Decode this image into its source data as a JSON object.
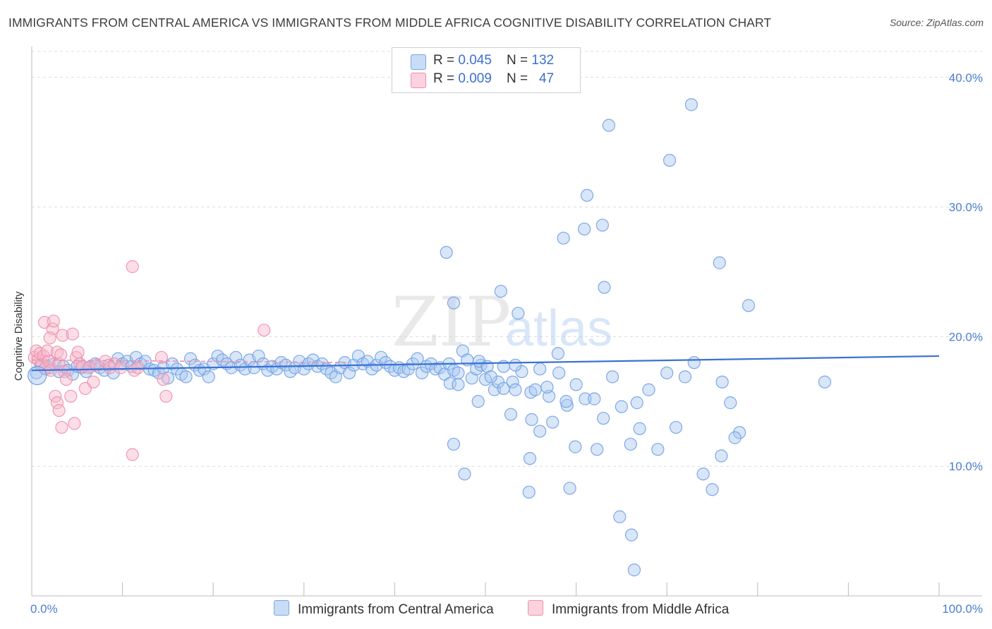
{
  "title": "IMMIGRANTS FROM CENTRAL AMERICA VS IMMIGRANTS FROM MIDDLE AFRICA COGNITIVE DISABILITY CORRELATION CHART",
  "source": "Source: ZipAtlas.com",
  "watermark": {
    "zip": "ZIP",
    "atlas": "atlas"
  },
  "legend": {
    "rows": [
      {
        "r_label": "R = ",
        "r_value": "0.045",
        "n_label": "N = ",
        "n_value": "132",
        "color": "#a9c8f0"
      },
      {
        "r_label": "R = ",
        "r_value": "0.009",
        "n_label": "N = ",
        "n_value": "47",
        "color": "#f6b6c9"
      }
    ]
  },
  "chart_data": {
    "type": "scatter",
    "title": "IMMIGRANTS FROM CENTRAL AMERICA VS IMMIGRANTS FROM MIDDLE AFRICA COGNITIVE DISABILITY CORRELATION CHART",
    "xlabel": "",
    "ylabel": "Cognitive Disability",
    "xlim": [
      0,
      100
    ],
    "ylim": [
      0,
      42
    ],
    "x_tick_labels": [
      "0.0%",
      "100.0%"
    ],
    "y_ticks": [
      10,
      20,
      30,
      40
    ],
    "y_tick_labels": [
      "10.0%",
      "20.0%",
      "30.0%",
      "40.0%"
    ],
    "grid": true,
    "series": [
      {
        "name": "Immigrants from Central America",
        "color": "#6fa0e6",
        "fill": "#a9c8f0",
        "trend": {
          "x": [
            0,
            100
          ],
          "y": [
            17.4,
            18.5
          ]
        },
        "points": [
          [
            0.5,
            17.2
          ],
          [
            1,
            17.8
          ],
          [
            1.5,
            17.5
          ],
          [
            2,
            17.6
          ],
          [
            2.5,
            17.9
          ],
          [
            3,
            17.3
          ],
          [
            3.5,
            17.7
          ],
          [
            4,
            17.4
          ],
          [
            4.5,
            17.1
          ],
          [
            5,
            17.7
          ],
          [
            5.5,
            17.6
          ],
          [
            6,
            17.3
          ],
          [
            6.5,
            17.7
          ],
          [
            7,
            17.9
          ],
          [
            7.5,
            17.6
          ],
          [
            8,
            17.4
          ],
          [
            8.5,
            17.8
          ],
          [
            9,
            17.2
          ],
          [
            9.5,
            18.3
          ],
          [
            10,
            17.9
          ],
          [
            10.5,
            18.1
          ],
          [
            11,
            17.7
          ],
          [
            11.5,
            18.4
          ],
          [
            12,
            17.9
          ],
          [
            12.5,
            18.1
          ],
          [
            13,
            17.5
          ],
          [
            13.5,
            17.4
          ],
          [
            14,
            17.2
          ],
          [
            14.5,
            17.6
          ],
          [
            15,
            16.8
          ],
          [
            15.5,
            17.9
          ],
          [
            16,
            17.5
          ],
          [
            16.5,
            17.1
          ],
          [
            17,
            16.9
          ],
          [
            17.5,
            18.3
          ],
          [
            18,
            17.8
          ],
          [
            18.5,
            17.4
          ],
          [
            19,
            17.5
          ],
          [
            19.5,
            16.9
          ],
          [
            20,
            17.9
          ],
          [
            20.5,
            18.5
          ],
          [
            21,
            18.2
          ],
          [
            21.5,
            17.9
          ],
          [
            22,
            17.6
          ],
          [
            22.5,
            18.4
          ],
          [
            23,
            17.8
          ],
          [
            23.5,
            17.5
          ],
          [
            24,
            18.2
          ],
          [
            24.5,
            17.6
          ],
          [
            25,
            18.5
          ],
          [
            25.5,
            17.9
          ],
          [
            26,
            17.4
          ],
          [
            26.5,
            17.7
          ],
          [
            27,
            17.5
          ],
          [
            27.5,
            18.0
          ],
          [
            28,
            17.8
          ],
          [
            28.5,
            17.3
          ],
          [
            29,
            17.6
          ],
          [
            29.5,
            18.1
          ],
          [
            30,
            17.5
          ],
          [
            30.5,
            17.9
          ],
          [
            31,
            18.2
          ],
          [
            31.5,
            17.7
          ],
          [
            32,
            17.9
          ],
          [
            32.5,
            17.5
          ],
          [
            33,
            17.2
          ],
          [
            33.5,
            16.9
          ],
          [
            34,
            17.6
          ],
          [
            34.5,
            18.0
          ],
          [
            35,
            17.2
          ],
          [
            35.5,
            17.8
          ],
          [
            36,
            18.5
          ],
          [
            36.5,
            17.9
          ],
          [
            37,
            18.1
          ],
          [
            37.5,
            17.5
          ],
          [
            38,
            17.8
          ],
          [
            38.5,
            18.4
          ],
          [
            39,
            18.0
          ],
          [
            39.5,
            17.7
          ],
          [
            40,
            17.4
          ],
          [
            40.5,
            17.6
          ],
          [
            41,
            17.3
          ],
          [
            41.5,
            17.5
          ],
          [
            42,
            17.9
          ],
          [
            42.5,
            18.3
          ],
          [
            43,
            17.2
          ],
          [
            43.5,
            17.7
          ],
          [
            44,
            17.9
          ],
          [
            44.5,
            17.5
          ],
          [
            45,
            17.6
          ],
          [
            45.5,
            17.1
          ],
          [
            46,
            17.9
          ],
          [
            46.5,
            17.4
          ],
          [
            47,
            17.2
          ],
          [
            47.5,
            18.9
          ],
          [
            48,
            18.2
          ],
          [
            48.5,
            16.8
          ],
          [
            49,
            17.5
          ],
          [
            49.5,
            17.8
          ],
          [
            50,
            16.7
          ],
          [
            51,
            15.9
          ],
          [
            52,
            17.7
          ],
          [
            53,
            16.5
          ],
          [
            54,
            17.3
          ],
          [
            55,
            15.7
          ],
          [
            55.5,
            15.9
          ],
          [
            56,
            17.5
          ],
          [
            57,
            15.4
          ],
          [
            58,
            18.7
          ],
          [
            59,
            14.7
          ],
          [
            60,
            16.3
          ],
          [
            61,
            15.2
          ],
          [
            62,
            15.2
          ],
          [
            63,
            13.7
          ],
          [
            64,
            16.9
          ],
          [
            65,
            14.6
          ],
          [
            66,
            11.7
          ],
          [
            67,
            12.9
          ],
          [
            68,
            15.9
          ],
          [
            69,
            11.3
          ],
          [
            70,
            17.2
          ],
          [
            71,
            13.0
          ],
          [
            72,
            16.9
          ],
          [
            73,
            18.0
          ],
          [
            74,
            9.4
          ],
          [
            75,
            8.2
          ],
          [
            76,
            10.8
          ],
          [
            77,
            14.9
          ],
          [
            78,
            12.6
          ],
          [
            79,
            22.4
          ]
        ],
        "outliers": [
          [
            49.3,
            18.1
          ],
          [
            49.2,
            15.0
          ],
          [
            51.4,
            16.5
          ],
          [
            52,
            16.0
          ],
          [
            53.3,
            15.9
          ],
          [
            45.7,
            26.5
          ],
          [
            46.5,
            11.7
          ],
          [
            47.7,
            9.4
          ],
          [
            46.1,
            16.4
          ],
          [
            47,
            16.3
          ],
          [
            46.5,
            22.6
          ],
          [
            50.2,
            17.7
          ],
          [
            50.6,
            16.9
          ],
          [
            51.7,
            23.5
          ],
          [
            52.8,
            14.0
          ],
          [
            53.3,
            17.8
          ],
          [
            53.6,
            21.8
          ],
          [
            54.8,
            8.0
          ],
          [
            54.9,
            10.6
          ],
          [
            55.1,
            13.6
          ],
          [
            56,
            12.7
          ],
          [
            56.8,
            16.1
          ],
          [
            57.4,
            13.4
          ],
          [
            58.1,
            17.2
          ],
          [
            58.6,
            27.6
          ],
          [
            58.9,
            15.0
          ],
          [
            59.3,
            8.3
          ],
          [
            59.9,
            11.5
          ],
          [
            60.9,
            28.3
          ],
          [
            61.2,
            30.9
          ],
          [
            62.3,
            11.3
          ],
          [
            62.9,
            28.6
          ],
          [
            63.1,
            23.8
          ],
          [
            63.6,
            36.3
          ],
          [
            64.8,
            6.1
          ],
          [
            66.1,
            4.7
          ],
          [
            66.4,
            2.0
          ],
          [
            66.7,
            14.9
          ],
          [
            70.3,
            33.6
          ],
          [
            72.7,
            37.9
          ],
          [
            75.8,
            25.7
          ],
          [
            76.1,
            16.5
          ],
          [
            77.5,
            12.2
          ],
          [
            87.4,
            16.5
          ]
        ]
      },
      {
        "name": "Immigrants from Middle Africa",
        "color": "#ee8fab",
        "fill": "#f6b6c9",
        "trend": {
          "x": [
            0,
            35
          ],
          "y": [
            18.2,
            18.0
          ]
        },
        "points": [
          [
            0.3,
            18.4
          ],
          [
            0.5,
            18.9
          ],
          [
            0.7,
            18.2
          ],
          [
            0.9,
            18.7
          ],
          [
            1.1,
            17.9
          ],
          [
            1.3,
            18.5
          ],
          [
            1.5,
            17.6
          ],
          [
            1.7,
            18.9
          ],
          [
            1.9,
            18.1
          ],
          [
            2.1,
            17.4
          ],
          [
            1.4,
            21.1
          ],
          [
            2.3,
            20.6
          ],
          [
            2.4,
            21.2
          ],
          [
            2.0,
            19.9
          ],
          [
            2.8,
            18.8
          ],
          [
            3.0,
            17.9
          ],
          [
            3.2,
            18.6
          ],
          [
            3.4,
            20.1
          ],
          [
            3.6,
            17.3
          ],
          [
            3.8,
            16.7
          ],
          [
            2.6,
            15.4
          ],
          [
            2.8,
            14.9
          ],
          [
            3.0,
            14.3
          ],
          [
            3.3,
            13.0
          ],
          [
            4.3,
            15.4
          ],
          [
            4.7,
            13.3
          ],
          [
            4.5,
            20.2
          ],
          [
            4.9,
            18.4
          ],
          [
            5.3,
            17.9
          ],
          [
            5.6,
            17.7
          ],
          [
            5.1,
            18.8
          ],
          [
            5.9,
            16.0
          ],
          [
            6.3,
            17.6
          ],
          [
            6.8,
            16.5
          ],
          [
            7.2,
            17.8
          ],
          [
            8.1,
            18.1
          ],
          [
            8.6,
            17.6
          ],
          [
            9.1,
            17.9
          ],
          [
            9.8,
            17.6
          ],
          [
            11.1,
            10.9
          ],
          [
            11.3,
            17.4
          ],
          [
            11.7,
            17.6
          ],
          [
            14.3,
            18.4
          ],
          [
            14.5,
            16.7
          ],
          [
            14.8,
            15.4
          ],
          [
            11.1,
            25.4
          ],
          [
            25.6,
            20.5
          ]
        ]
      }
    ]
  },
  "bottom_legend": [
    {
      "label": "Immigrants from Central America",
      "color": "#a9c8f0"
    },
    {
      "label": "Immigrants from Middle Africa",
      "color": "#f6b6c9"
    }
  ]
}
